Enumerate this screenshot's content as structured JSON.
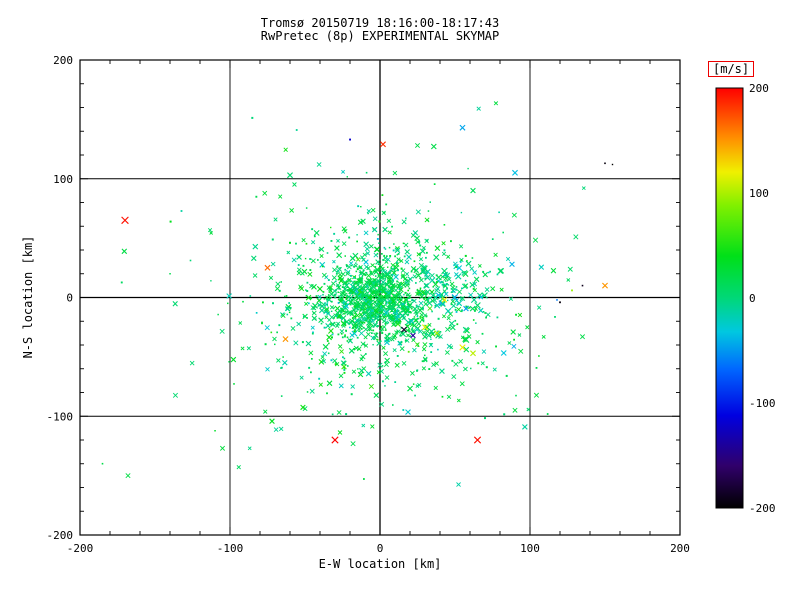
{
  "chart_data": {
    "type": "scatter",
    "title": "Tromsø 20150719 18:16:00-18:17:43",
    "subtitle": "RwPretec (8p) EXPERIMENTAL SKYMAP",
    "xlabel": "E-W location [km]",
    "ylabel": "N-S location [km]",
    "xlim": [
      -200,
      200
    ],
    "ylim": [
      -200,
      200
    ],
    "xticks": [
      -200,
      -100,
      0,
      100,
      200
    ],
    "yticks": [
      -200,
      -100,
      0,
      100,
      200
    ],
    "grid_ticks": [
      -100,
      0,
      100
    ],
    "minor_tick_step": 20,
    "grid": true,
    "colorbar": {
      "label": "[m/s]",
      "min": -200,
      "max": 200,
      "ticks": [
        200,
        100,
        0,
        -100,
        -200
      ],
      "box_color": "#ee0000",
      "stops": [
        {
          "t": 0.0,
          "color": "#000000"
        },
        {
          "t": 0.1,
          "color": "#30006a"
        },
        {
          "t": 0.22,
          "color": "#0000e0"
        },
        {
          "t": 0.33,
          "color": "#0066ff"
        },
        {
          "t": 0.42,
          "color": "#00c8e0"
        },
        {
          "t": 0.5,
          "color": "#00d878"
        },
        {
          "t": 0.6,
          "color": "#00e018"
        },
        {
          "t": 0.72,
          "color": "#80f000"
        },
        {
          "t": 0.8,
          "color": "#f0f000"
        },
        {
          "t": 0.88,
          "color": "#ff9000"
        },
        {
          "t": 1.0,
          "color": "#ff0000"
        }
      ]
    },
    "clusters": [
      {
        "count": 600,
        "cx": -6,
        "cy": -2,
        "sx": 16,
        "sy": 16,
        "v_mean": 12,
        "v_sigma": 16,
        "x_frac": 0.6,
        "size": 1.7
      },
      {
        "count": 560,
        "cx": -2,
        "cy": -6,
        "sx": 34,
        "sy": 33,
        "v_mean": 10,
        "v_sigma": 20,
        "x_frac": 0.55,
        "size": 1.7
      },
      {
        "count": 300,
        "cx": 0,
        "cy": -12,
        "sx": 62,
        "sy": 58,
        "v_mean": 14,
        "v_sigma": 16,
        "x_frac": 0.5,
        "size": 1.5
      },
      {
        "count": 90,
        "cx": 48,
        "cy": 5,
        "sx": 14,
        "sy": 14,
        "v_mean": -5,
        "v_sigma": 18,
        "x_frac": 0.75,
        "size": 2.0
      }
    ],
    "outliers": [
      {
        "x": -170,
        "y": 65,
        "v": 195,
        "m": "x",
        "s": 3.4
      },
      {
        "x": -30,
        "y": -120,
        "v": 200,
        "m": "x",
        "s": 3.2
      },
      {
        "x": 65,
        "y": -120,
        "v": 195,
        "m": "x",
        "s": 3.2
      },
      {
        "x": 2,
        "y": 129,
        "v": 185,
        "m": "x",
        "s": 2.6
      },
      {
        "x": -75,
        "y": 25,
        "v": 165,
        "m": "x",
        "s": 2.6
      },
      {
        "x": -63,
        "y": -35,
        "v": 150,
        "m": "x",
        "s": 2.6
      },
      {
        "x": 30,
        "y": -25,
        "v": 115,
        "m": "x",
        "s": 2.6
      },
      {
        "x": 38,
        "y": -30,
        "v": 100,
        "m": "x",
        "s": 2.4
      },
      {
        "x": 55,
        "y": -42,
        "v": 120,
        "m": "x",
        "s": 2.8
      },
      {
        "x": 62,
        "y": -47,
        "v": 105,
        "m": "x",
        "s": 2.6
      },
      {
        "x": 43,
        "y": -2,
        "v": 115,
        "m": "x",
        "s": 2.4
      },
      {
        "x": 150,
        "y": 10,
        "v": 150,
        "m": "x",
        "s": 2.6
      },
      {
        "x": 128,
        "y": 6,
        "v": 95,
        "m": "dot",
        "s": 1.8
      },
      {
        "x": 120,
        "y": -4,
        "v": -195,
        "m": "dot",
        "s": 1.8
      },
      {
        "x": 135,
        "y": 10,
        "v": -190,
        "m": "dot",
        "s": 1.6
      },
      {
        "x": 150,
        "y": 113,
        "v": -195,
        "m": "dot",
        "s": 1.6
      },
      {
        "x": 118,
        "y": -2,
        "v": -60,
        "m": "dot",
        "s": 1.6
      },
      {
        "x": -20,
        "y": 133,
        "v": -120,
        "m": "dot",
        "s": 1.9
      },
      {
        "x": 55,
        "y": 143,
        "v": -45,
        "m": "x",
        "s": 2.6
      },
      {
        "x": 90,
        "y": 105,
        "v": -35,
        "m": "x",
        "s": 2.6
      },
      {
        "x": 62,
        "y": 90,
        "v": 15,
        "m": "x",
        "s": 2.4
      },
      {
        "x": -60,
        "y": 103,
        "v": 5,
        "m": "x",
        "s": 2.6
      },
      {
        "x": 25,
        "y": 128,
        "v": 20,
        "m": "x",
        "s": 2.2
      },
      {
        "x": 16,
        "y": -27,
        "v": -185,
        "m": "x",
        "s": 2.6
      },
      {
        "x": 22,
        "y": -32,
        "v": -140,
        "m": "x",
        "s": 2.4
      },
      {
        "x": 88,
        "y": 28,
        "v": -40,
        "m": "x",
        "s": 2.4
      },
      {
        "x": -185,
        "y": -140,
        "v": 20,
        "m": "dot",
        "s": 1.6
      },
      {
        "x": -168,
        "y": -150,
        "v": 22,
        "m": "x",
        "s": 2.2
      },
      {
        "x": -105,
        "y": -127,
        "v": 25,
        "m": "x",
        "s": 2.2
      },
      {
        "x": 135,
        "y": -33,
        "v": 20,
        "m": "x",
        "s": 2.2
      },
      {
        "x": 90,
        "y": -95,
        "v": 25,
        "m": "x",
        "s": 2.2
      },
      {
        "x": -140,
        "y": 20,
        "v": 18,
        "m": "dot",
        "s": 1.5
      },
      {
        "x": 155,
        "y": 112,
        "v": -200,
        "m": "dot",
        "s": 1.4
      }
    ]
  }
}
